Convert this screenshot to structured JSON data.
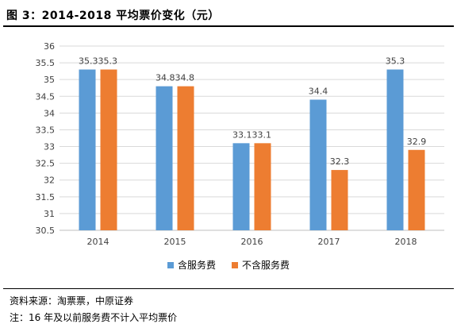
{
  "figure_title": "图 3：2014-2018 平均票价变化（元）",
  "source_line": "资料来源：淘票票，中原证券",
  "footnote_line": "注：16 年及以前服务费不计入平均票价",
  "chart_data": {
    "type": "bar",
    "title": "",
    "xlabel": "",
    "ylabel": "",
    "categories": [
      "2014",
      "2015",
      "2016",
      "2017",
      "2018"
    ],
    "ylim": [
      30.5,
      36
    ],
    "yticks": [
      "30.5",
      "31",
      "31.5",
      "32",
      "32.5",
      "33",
      "33.5",
      "34",
      "34.5",
      "35",
      "35.5",
      "36"
    ],
    "grid": true,
    "legend_position": "bottom",
    "series": [
      {
        "name": "含服务费",
        "color": "#5B9BD5",
        "values": [
          35.3,
          34.8,
          33.1,
          34.4,
          35.3
        ],
        "labels": [
          "35.3",
          "34.8",
          "33.1",
          "34.4",
          "35.3"
        ]
      },
      {
        "name": "不含服务费",
        "color": "#ED7D31",
        "values": [
          35.3,
          34.8,
          33.1,
          32.3,
          32.9
        ],
        "labels": [
          "35.3",
          "34.8",
          "33.1",
          "32.3",
          "32.9"
        ]
      }
    ]
  }
}
